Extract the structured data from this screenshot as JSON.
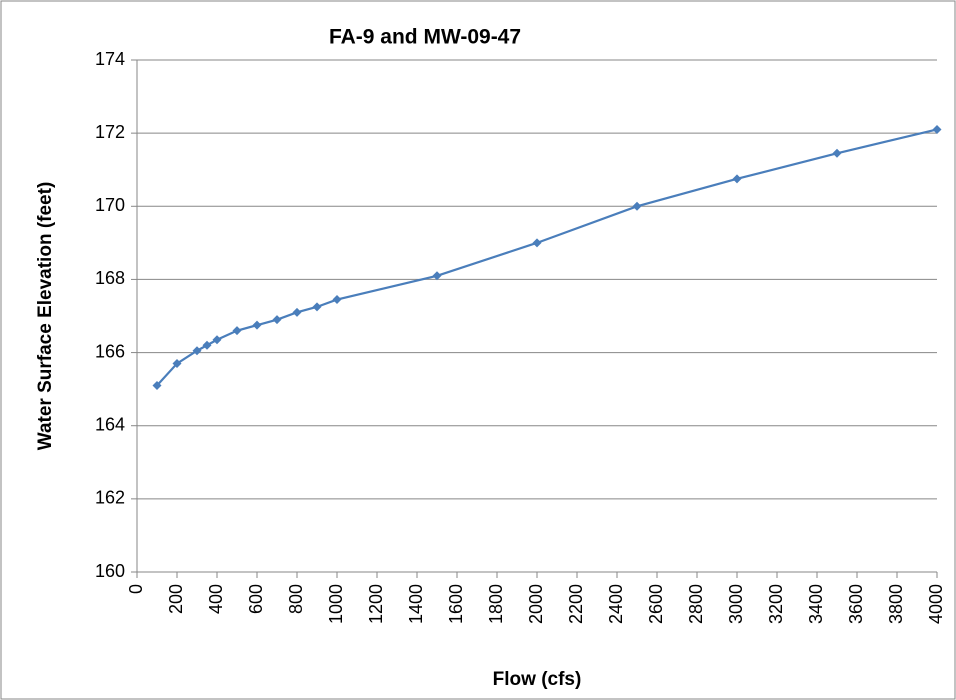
{
  "chart_data": {
    "type": "line",
    "title": "FA-9 and MW-09-47",
    "x_label": "Flow (cfs)",
    "y_label": "Water Surface Elevation (feet)",
    "x": [
      100,
      200,
      300,
      350,
      400,
      500,
      600,
      700,
      800,
      900,
      1000,
      1500,
      2000,
      2500,
      3000,
      3500,
      4000
    ],
    "series": [
      {
        "name": "FA-9 and MW-09-47",
        "color": "#4a7ebb",
        "values": [
          165.1,
          165.7,
          166.05,
          166.2,
          166.35,
          166.6,
          166.75,
          166.9,
          167.1,
          167.25,
          167.45,
          168.1,
          169.0,
          170.0,
          170.75,
          171.45,
          172.1
        ]
      }
    ],
    "xlim": [
      0,
      4000
    ],
    "xticks": [
      0,
      200,
      400,
      600,
      800,
      1000,
      1200,
      1400,
      1600,
      1800,
      2000,
      2200,
      2400,
      2600,
      2800,
      3000,
      3200,
      3400,
      3600,
      3800,
      4000
    ],
    "ylim": [
      160,
      174
    ],
    "yticks": [
      160,
      162,
      164,
      166,
      168,
      170,
      172,
      174
    ],
    "grid": true
  }
}
